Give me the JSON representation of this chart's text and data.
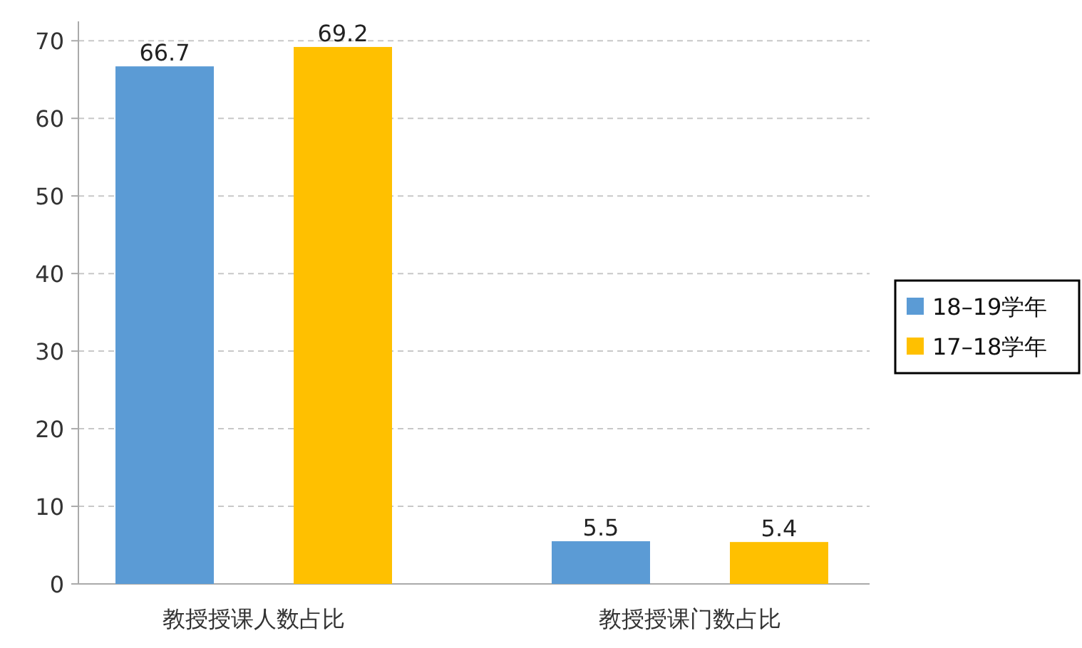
{
  "chart_data": {
    "type": "bar",
    "categories": [
      "教授授课人数占比",
      "教授授课门数占比"
    ],
    "series": [
      {
        "name": "18–19学年",
        "color": "#5b9bd5",
        "values": [
          66.7,
          5.5
        ]
      },
      {
        "name": "17–18学年",
        "color": "#ffc000",
        "values": [
          69.2,
          5.4
        ]
      }
    ],
    "ylim": [
      0,
      72.5
    ],
    "yticks": [
      0,
      10,
      20,
      30,
      40,
      50,
      60,
      70
    ],
    "grid": "y",
    "legend": "right",
    "data_labels": true
  }
}
